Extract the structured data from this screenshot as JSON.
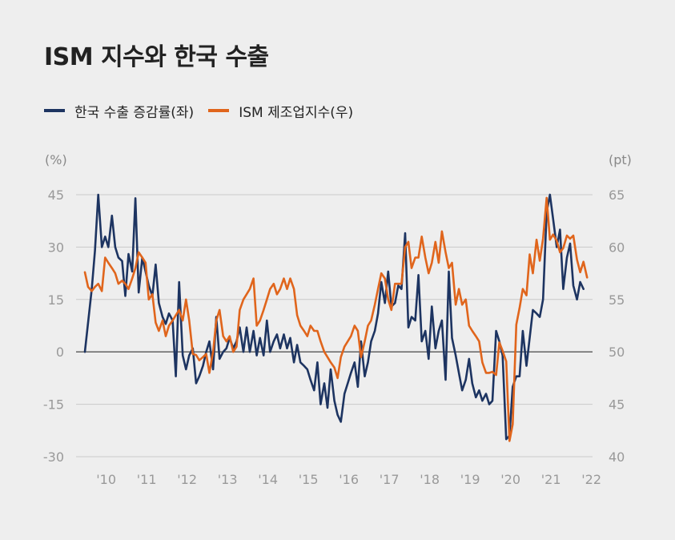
{
  "chart_data": {
    "type": "line",
    "title": "ISM 지수와 한국 수출",
    "units": {
      "left": "(%)",
      "right": "(pt)"
    },
    "y_left": {
      "ticks": [
        45,
        30,
        15,
        0,
        -15,
        -30
      ],
      "range": [
        -30,
        45
      ]
    },
    "y_right": {
      "ticks": [
        65,
        60,
        55,
        50,
        45,
        40
      ],
      "range": [
        40,
        65
      ]
    },
    "x_ticks": [
      "'10",
      "'11",
      "'12",
      "'13",
      "'14",
      "'15",
      "'16",
      "'17",
      "'18",
      "'19",
      "'20",
      "'21",
      "'22"
    ],
    "x_range": [
      2009.75,
      2022.33
    ],
    "series": [
      {
        "name": "한국 수출 증감률(좌)",
        "axis": "left",
        "color": "#1d3461",
        "points": [
          [
            2009.75,
            0
          ],
          [
            2009.92,
            18
          ],
          [
            2010.0,
            29
          ],
          [
            2010.08,
            45
          ],
          [
            2010.17,
            30
          ],
          [
            2010.25,
            33
          ],
          [
            2010.33,
            30
          ],
          [
            2010.42,
            39
          ],
          [
            2010.5,
            30
          ],
          [
            2010.58,
            27
          ],
          [
            2010.67,
            26
          ],
          [
            2010.75,
            16
          ],
          [
            2010.83,
            28
          ],
          [
            2010.92,
            23
          ],
          [
            2011.0,
            44
          ],
          [
            2011.08,
            17
          ],
          [
            2011.17,
            27
          ],
          [
            2011.25,
            23
          ],
          [
            2011.33,
            19
          ],
          [
            2011.42,
            16
          ],
          [
            2011.5,
            25
          ],
          [
            2011.58,
            14
          ],
          [
            2011.67,
            10
          ],
          [
            2011.75,
            8
          ],
          [
            2011.83,
            11
          ],
          [
            2011.92,
            9
          ],
          [
            2012.0,
            -7
          ],
          [
            2012.08,
            20
          ],
          [
            2012.17,
            -1
          ],
          [
            2012.25,
            -5
          ],
          [
            2012.33,
            -1
          ],
          [
            2012.42,
            1
          ],
          [
            2012.5,
            -9
          ],
          [
            2012.58,
            -7
          ],
          [
            2012.67,
            -4
          ],
          [
            2012.75,
            0
          ],
          [
            2012.83,
            3
          ],
          [
            2012.92,
            -5
          ],
          [
            2013.0,
            10
          ],
          [
            2013.08,
            -2
          ],
          [
            2013.17,
            0
          ],
          [
            2013.25,
            1
          ],
          [
            2013.33,
            4
          ],
          [
            2013.42,
            1
          ],
          [
            2013.5,
            3
          ],
          [
            2013.58,
            7
          ],
          [
            2013.67,
            0
          ],
          [
            2013.75,
            7
          ],
          [
            2013.83,
            0
          ],
          [
            2013.92,
            6
          ],
          [
            2014.0,
            -1
          ],
          [
            2014.08,
            4
          ],
          [
            2014.17,
            -1
          ],
          [
            2014.25,
            9
          ],
          [
            2014.33,
            0
          ],
          [
            2014.42,
            3
          ],
          [
            2014.5,
            5
          ],
          [
            2014.58,
            1
          ],
          [
            2014.67,
            5
          ],
          [
            2014.75,
            1
          ],
          [
            2014.83,
            4
          ],
          [
            2014.92,
            -3
          ],
          [
            2015.0,
            2
          ],
          [
            2015.08,
            -3
          ],
          [
            2015.17,
            -4
          ],
          [
            2015.25,
            -5
          ],
          [
            2015.33,
            -8
          ],
          [
            2015.42,
            -11
          ],
          [
            2015.5,
            -3
          ],
          [
            2015.58,
            -15
          ],
          [
            2015.67,
            -9
          ],
          [
            2015.75,
            -16
          ],
          [
            2015.83,
            -5
          ],
          [
            2015.92,
            -14
          ],
          [
            2016.0,
            -18
          ],
          [
            2016.08,
            -20
          ],
          [
            2016.17,
            -12
          ],
          [
            2016.25,
            -9
          ],
          [
            2016.33,
            -6
          ],
          [
            2016.42,
            -3
          ],
          [
            2016.5,
            -10
          ],
          [
            2016.58,
            3
          ],
          [
            2016.67,
            -7
          ],
          [
            2016.75,
            -3
          ],
          [
            2016.83,
            3
          ],
          [
            2016.92,
            6
          ],
          [
            2017.0,
            11
          ],
          [
            2017.08,
            20
          ],
          [
            2017.17,
            14
          ],
          [
            2017.25,
            23
          ],
          [
            2017.33,
            13
          ],
          [
            2017.42,
            14
          ],
          [
            2017.5,
            19
          ],
          [
            2017.58,
            18
          ],
          [
            2017.67,
            34
          ],
          [
            2017.75,
            7
          ],
          [
            2017.83,
            10
          ],
          [
            2017.92,
            9
          ],
          [
            2018.0,
            22
          ],
          [
            2018.08,
            3
          ],
          [
            2018.17,
            6
          ],
          [
            2018.25,
            -2
          ],
          [
            2018.33,
            13
          ],
          [
            2018.42,
            1
          ],
          [
            2018.5,
            6
          ],
          [
            2018.58,
            9
          ],
          [
            2018.67,
            -8
          ],
          [
            2018.75,
            23
          ],
          [
            2018.83,
            4
          ],
          [
            2018.92,
            -1
          ],
          [
            2019.0,
            -6
          ],
          [
            2019.08,
            -11
          ],
          [
            2019.17,
            -8
          ],
          [
            2019.25,
            -2
          ],
          [
            2019.33,
            -9
          ],
          [
            2019.42,
            -13
          ],
          [
            2019.5,
            -11
          ],
          [
            2019.58,
            -14
          ],
          [
            2019.67,
            -12
          ],
          [
            2019.75,
            -15
          ],
          [
            2019.83,
            -14
          ],
          [
            2019.92,
            6
          ],
          [
            2020.0,
            3
          ],
          [
            2020.08,
            -1
          ],
          [
            2020.17,
            -25
          ],
          [
            2020.25,
            -24
          ],
          [
            2020.33,
            -10
          ],
          [
            2020.42,
            -7
          ],
          [
            2020.5,
            -7
          ],
          [
            2020.58,
            6
          ],
          [
            2020.67,
            -4
          ],
          [
            2020.75,
            4
          ],
          [
            2020.83,
            12
          ],
          [
            2020.92,
            11
          ],
          [
            2021.0,
            10
          ],
          [
            2021.08,
            15
          ],
          [
            2021.17,
            40
          ],
          [
            2021.25,
            45
          ],
          [
            2021.33,
            38
          ],
          [
            2021.42,
            30
          ],
          [
            2021.5,
            35
          ],
          [
            2021.58,
            18
          ],
          [
            2021.67,
            27
          ],
          [
            2021.75,
            31
          ],
          [
            2021.83,
            19
          ],
          [
            2021.92,
            15
          ],
          [
            2022.0,
            20
          ],
          [
            2022.08,
            18
          ]
        ]
      },
      {
        "name": "ISM 제조업지수(우)",
        "axis": "right",
        "color": "#e0651c",
        "points": [
          [
            2009.75,
            57.6
          ],
          [
            2009.83,
            56.2
          ],
          [
            2009.92,
            55.8
          ],
          [
            2010.0,
            56.2
          ],
          [
            2010.08,
            56.5
          ],
          [
            2010.17,
            55.8
          ],
          [
            2010.25,
            59.0
          ],
          [
            2010.33,
            58.5
          ],
          [
            2010.42,
            58.0
          ],
          [
            2010.5,
            57.5
          ],
          [
            2010.58,
            56.5
          ],
          [
            2010.67,
            56.8
          ],
          [
            2010.75,
            56.5
          ],
          [
            2010.83,
            56.0
          ],
          [
            2010.92,
            57.0
          ],
          [
            2011.0,
            58.0
          ],
          [
            2011.08,
            59.5
          ],
          [
            2011.17,
            59.0
          ],
          [
            2011.25,
            58.5
          ],
          [
            2011.33,
            55.0
          ],
          [
            2011.42,
            55.5
          ],
          [
            2011.5,
            52.8
          ],
          [
            2011.58,
            52.0
          ],
          [
            2011.67,
            53.0
          ],
          [
            2011.75,
            51.5
          ],
          [
            2011.83,
            52.5
          ],
          [
            2011.92,
            53.0
          ],
          [
            2012.0,
            53.5
          ],
          [
            2012.08,
            54.0
          ],
          [
            2012.17,
            53.0
          ],
          [
            2012.25,
            55.0
          ],
          [
            2012.33,
            53.0
          ],
          [
            2012.42,
            49.8
          ],
          [
            2012.5,
            49.7
          ],
          [
            2012.58,
            49.2
          ],
          [
            2012.67,
            49.5
          ],
          [
            2012.75,
            49.8
          ],
          [
            2012.83,
            48.0
          ],
          [
            2012.92,
            50.0
          ],
          [
            2013.0,
            53.0
          ],
          [
            2013.08,
            54.0
          ],
          [
            2013.17,
            51.5
          ],
          [
            2013.25,
            51.0
          ],
          [
            2013.33,
            51.5
          ],
          [
            2013.42,
            50.0
          ],
          [
            2013.5,
            50.5
          ],
          [
            2013.58,
            54.0
          ],
          [
            2013.67,
            55.0
          ],
          [
            2013.75,
            55.5
          ],
          [
            2013.83,
            56.0
          ],
          [
            2013.92,
            57.0
          ],
          [
            2014.0,
            52.5
          ],
          [
            2014.08,
            53.0
          ],
          [
            2014.17,
            54.0
          ],
          [
            2014.25,
            55.0
          ],
          [
            2014.33,
            56.0
          ],
          [
            2014.42,
            56.5
          ],
          [
            2014.5,
            55.5
          ],
          [
            2014.58,
            56.0
          ],
          [
            2014.67,
            57.0
          ],
          [
            2014.75,
            56.0
          ],
          [
            2014.83,
            57.0
          ],
          [
            2014.92,
            56.0
          ],
          [
            2015.0,
            53.5
          ],
          [
            2015.08,
            52.5
          ],
          [
            2015.17,
            52.0
          ],
          [
            2015.25,
            51.5
          ],
          [
            2015.33,
            52.5
          ],
          [
            2015.42,
            52.0
          ],
          [
            2015.5,
            52.0
          ],
          [
            2015.58,
            51.0
          ],
          [
            2015.67,
            50.0
          ],
          [
            2015.75,
            49.5
          ],
          [
            2015.83,
            49.0
          ],
          [
            2015.92,
            48.5
          ],
          [
            2016.0,
            47.5
          ],
          [
            2016.08,
            49.5
          ],
          [
            2016.17,
            50.5
          ],
          [
            2016.25,
            51.0
          ],
          [
            2016.33,
            51.5
          ],
          [
            2016.42,
            52.5
          ],
          [
            2016.5,
            52.0
          ],
          [
            2016.58,
            49.5
          ],
          [
            2016.67,
            51.0
          ],
          [
            2016.75,
            52.5
          ],
          [
            2016.83,
            53.0
          ],
          [
            2016.92,
            54.5
          ],
          [
            2017.0,
            56.0
          ],
          [
            2017.08,
            57.5
          ],
          [
            2017.17,
            57.0
          ],
          [
            2017.25,
            55.0
          ],
          [
            2017.33,
            54.0
          ],
          [
            2017.42,
            56.5
          ],
          [
            2017.5,
            56.5
          ],
          [
            2017.58,
            56.5
          ],
          [
            2017.67,
            60.0
          ],
          [
            2017.75,
            60.5
          ],
          [
            2017.83,
            58.0
          ],
          [
            2017.92,
            59.0
          ],
          [
            2018.0,
            59.0
          ],
          [
            2018.08,
            61.0
          ],
          [
            2018.17,
            59.0
          ],
          [
            2018.25,
            57.5
          ],
          [
            2018.33,
            58.5
          ],
          [
            2018.42,
            60.5
          ],
          [
            2018.5,
            58.5
          ],
          [
            2018.58,
            61.5
          ],
          [
            2018.67,
            59.5
          ],
          [
            2018.75,
            58.0
          ],
          [
            2018.83,
            58.5
          ],
          [
            2018.92,
            54.5
          ],
          [
            2019.0,
            56.0
          ],
          [
            2019.08,
            54.5
          ],
          [
            2019.17,
            55.0
          ],
          [
            2019.25,
            52.5
          ],
          [
            2019.33,
            52.0
          ],
          [
            2019.42,
            51.5
          ],
          [
            2019.5,
            51.0
          ],
          [
            2019.58,
            49.0
          ],
          [
            2019.67,
            48.0
          ],
          [
            2019.75,
            48.0
          ],
          [
            2019.83,
            48.1
          ],
          [
            2019.92,
            47.8
          ],
          [
            2020.0,
            50.9
          ],
          [
            2020.08,
            50.1
          ],
          [
            2020.17,
            49.1
          ],
          [
            2020.25,
            41.5
          ],
          [
            2020.33,
            43.1
          ],
          [
            2020.42,
            52.6
          ],
          [
            2020.5,
            54.2
          ],
          [
            2020.58,
            56.0
          ],
          [
            2020.67,
            55.4
          ],
          [
            2020.75,
            59.3
          ],
          [
            2020.83,
            57.5
          ],
          [
            2020.92,
            60.7
          ],
          [
            2021.0,
            58.7
          ],
          [
            2021.08,
            60.8
          ],
          [
            2021.17,
            64.7
          ],
          [
            2021.25,
            60.7
          ],
          [
            2021.33,
            61.2
          ],
          [
            2021.42,
            60.6
          ],
          [
            2021.5,
            59.5
          ],
          [
            2021.58,
            59.9
          ],
          [
            2021.67,
            61.1
          ],
          [
            2021.75,
            60.8
          ],
          [
            2021.83,
            61.1
          ],
          [
            2021.92,
            58.8
          ],
          [
            2022.0,
            57.6
          ],
          [
            2022.08,
            58.6
          ],
          [
            2022.17,
            57.1
          ]
        ]
      }
    ]
  }
}
